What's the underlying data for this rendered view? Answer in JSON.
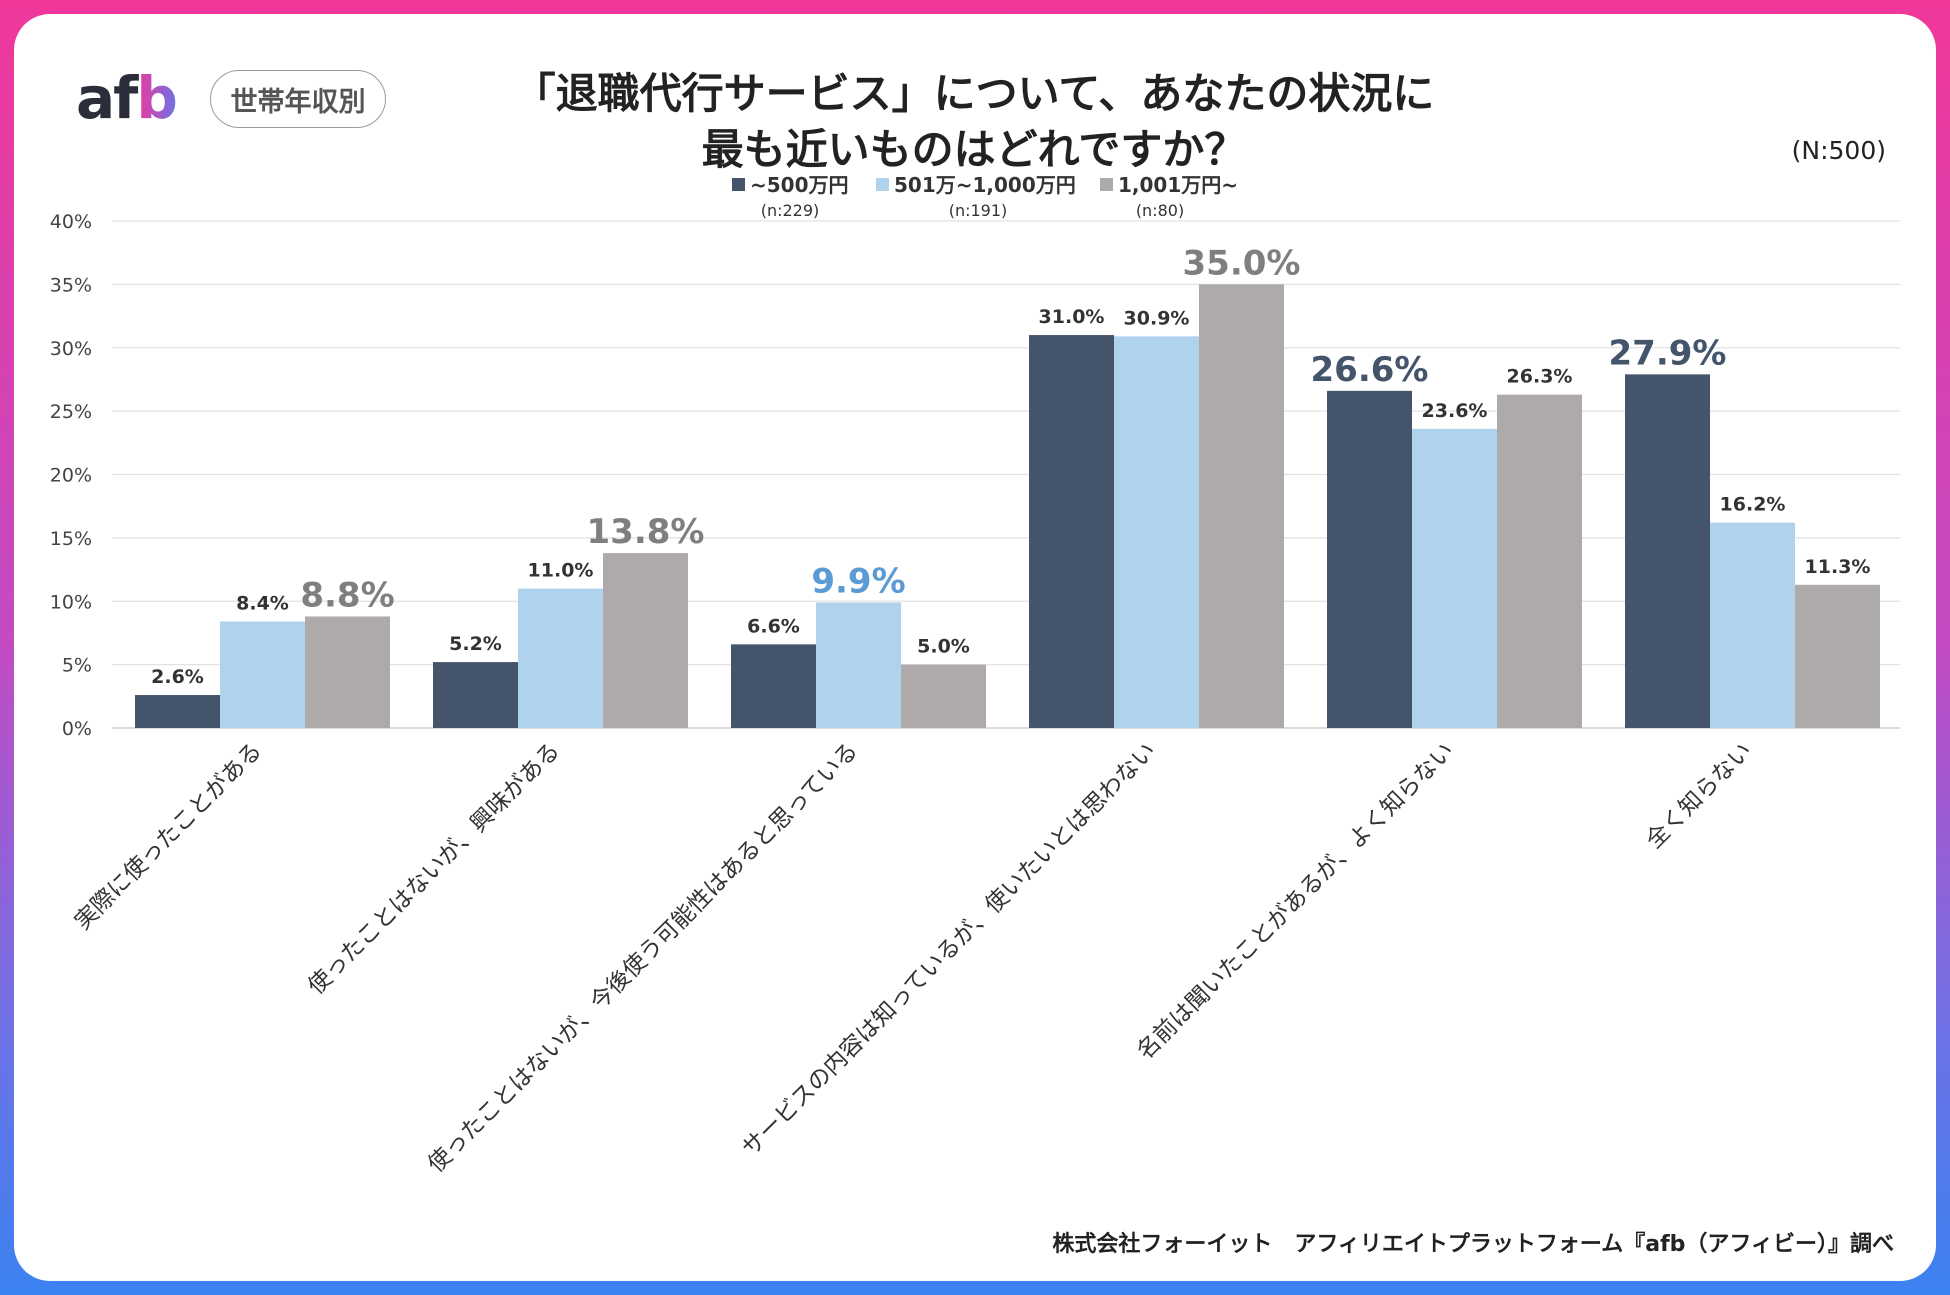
{
  "header": {
    "logo_text_a": "af",
    "logo_text_b": "b",
    "badge": "世帯年収別",
    "title_line1": "「退職代行サービス」について、あなたの状況に",
    "title_line2": "最も近いものはどれですか？",
    "sample_size": "(N:500)"
  },
  "footer": {
    "source": "株式会社フォーイット　アフィリエイトプラットフォーム『afb（アフィビー）』調べ"
  },
  "chart_data": {
    "type": "bar",
    "ylim": [
      0,
      40
    ],
    "yticks": [
      "0%",
      "5%",
      "10%",
      "15%",
      "20%",
      "25%",
      "30%",
      "35%",
      "40%"
    ],
    "grid": true,
    "legend_position": "top",
    "categories": [
      "実際に使ったことがある",
      "使ったことはないが、興味がある",
      "使ったことはないが、今後使う可能性はあると思っている",
      "サービスの内容は知っているが、使いたいとは思わない",
      "名前は聞いたことがあるが、よく知らない",
      "全く知らない"
    ],
    "series": [
      {
        "name": "~500万円",
        "n": "(n:229)",
        "color": "#44546a",
        "values": [
          2.6,
          5.2,
          6.6,
          31.0,
          26.6,
          27.9
        ],
        "labels": [
          "2.6%",
          "5.2%",
          "6.6%",
          "31.0%",
          "26.6%",
          "27.9%"
        ]
      },
      {
        "name": "501万~1,000万円",
        "n": "(n:191)",
        "color": "#afd2ed",
        "values": [
          8.4,
          11.0,
          9.9,
          30.9,
          23.6,
          16.2
        ],
        "labels": [
          "8.4%",
          "11.0%",
          "9.9%",
          "30.9%",
          "23.6%",
          "16.2%"
        ]
      },
      {
        "name": "1,001万円~",
        "n": "(n:80)",
        "color": "#aeaaaa",
        "values": [
          8.8,
          13.8,
          5.0,
          35.0,
          26.3,
          11.3
        ],
        "labels": [
          "8.8%",
          "13.8%",
          "5.0%",
          "35.0%",
          "26.3%",
          "11.3%"
        ]
      }
    ],
    "highlight_label_colors": [
      "#44546a",
      "#5b9bd5",
      "#7f7f7f"
    ]
  }
}
